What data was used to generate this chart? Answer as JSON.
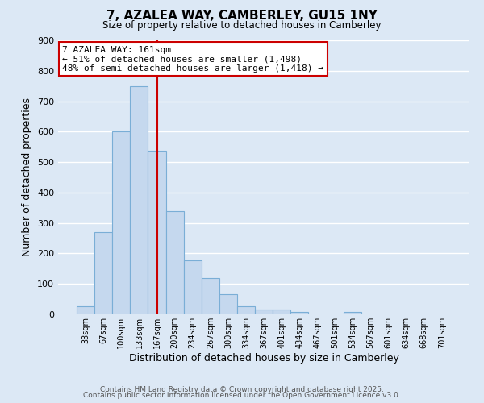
{
  "title": "7, AZALEA WAY, CAMBERLEY, GU15 1NY",
  "subtitle": "Size of property relative to detached houses in Camberley",
  "xlabel": "Distribution of detached houses by size in Camberley",
  "ylabel": "Number of detached properties",
  "categories": [
    "33sqm",
    "67sqm",
    "100sqm",
    "133sqm",
    "167sqm",
    "200sqm",
    "234sqm",
    "267sqm",
    "300sqm",
    "334sqm",
    "367sqm",
    "401sqm",
    "434sqm",
    "467sqm",
    "501sqm",
    "534sqm",
    "567sqm",
    "601sqm",
    "634sqm",
    "668sqm",
    "701sqm"
  ],
  "values": [
    27,
    270,
    600,
    748,
    538,
    340,
    177,
    120,
    65,
    27,
    15,
    15,
    8,
    0,
    0,
    7,
    0,
    0,
    0,
    0,
    0
  ],
  "bar_color": "#c5d8ee",
  "bar_edge_color": "#7aaed6",
  "vline_x_idx": 4,
  "vline_color": "#cc0000",
  "annotation_title": "7 AZALEA WAY: 161sqm",
  "annotation_line1": "← 51% of detached houses are smaller (1,498)",
  "annotation_line2": "48% of semi-detached houses are larger (1,418) →",
  "annotation_box_facecolor": "#ffffff",
  "annotation_box_edgecolor": "#cc0000",
  "background_color": "#dce8f5",
  "grid_color": "#ffffff",
  "ylim": [
    0,
    900
  ],
  "yticks": [
    0,
    100,
    200,
    300,
    400,
    500,
    600,
    700,
    800,
    900
  ],
  "footer1": "Contains HM Land Registry data © Crown copyright and database right 2025.",
  "footer2": "Contains public sector information licensed under the Open Government Licence v3.0."
}
